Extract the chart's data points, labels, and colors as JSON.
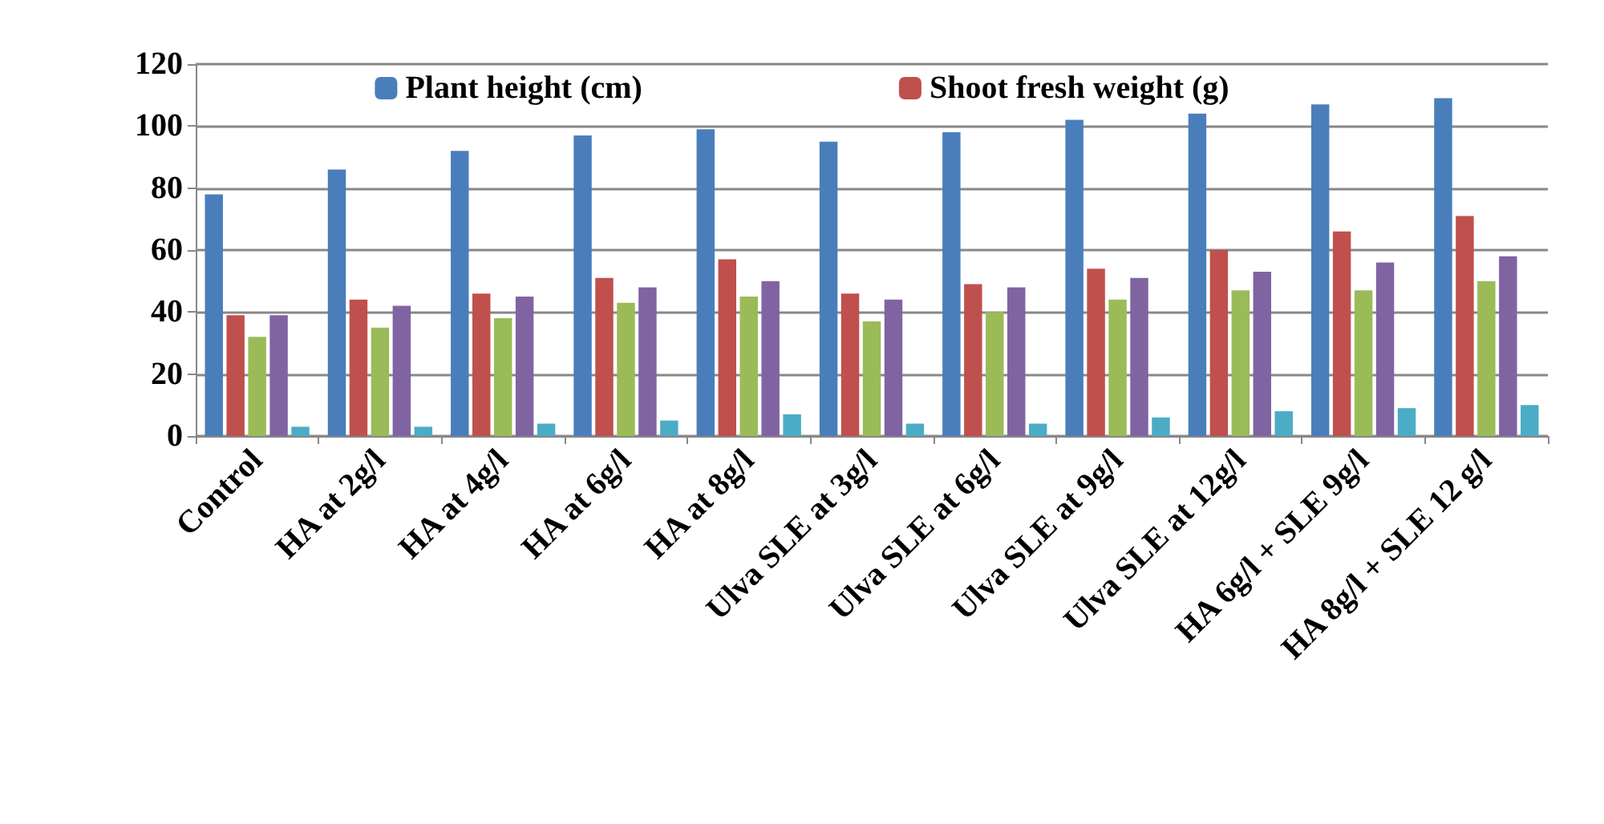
{
  "chart_data": {
    "type": "bar",
    "categories": [
      "Control",
      "HA at 2g/l",
      "HA at 4g/l",
      "HA at 6g/l",
      "HA at 8g/l",
      "Ulva SLE at 3g/l",
      "Ulva SLE at 6g/l",
      "Ulva SLE at 9g/l",
      "Ulva SLE at 12g/l",
      "HA 6g/l + SLE 9g/l",
      "HA 8g/l + SLE 12 g/l"
    ],
    "series": [
      {
        "name": "Plant height (cm)",
        "color": "#4a7ebb",
        "values": [
          78,
          86,
          92,
          97,
          99,
          95,
          98,
          102,
          104,
          107,
          109
        ]
      },
      {
        "name": "Shoot fresh weight (g)",
        "color": "#c0504d",
        "values": [
          39,
          44,
          46,
          51,
          57,
          46,
          49,
          54,
          60,
          66,
          71
        ]
      },
      {
        "color": "#9bbb59",
        "values": [
          32,
          35,
          38,
          43,
          45,
          37,
          40,
          44,
          47,
          47,
          50
        ]
      },
      {
        "color": "#8064a2",
        "values": [
          39,
          42,
          45,
          48,
          50,
          44,
          48,
          51,
          53,
          56,
          58
        ]
      },
      {
        "color": "#4bacc6",
        "values": [
          3,
          3,
          4,
          5,
          7,
          4,
          4,
          6,
          8,
          9,
          10
        ]
      }
    ],
    "ylim": [
      0,
      120
    ],
    "yticks": [
      0,
      20,
      40,
      60,
      80,
      100,
      120
    ],
    "grid": "y",
    "legend": "top"
  }
}
